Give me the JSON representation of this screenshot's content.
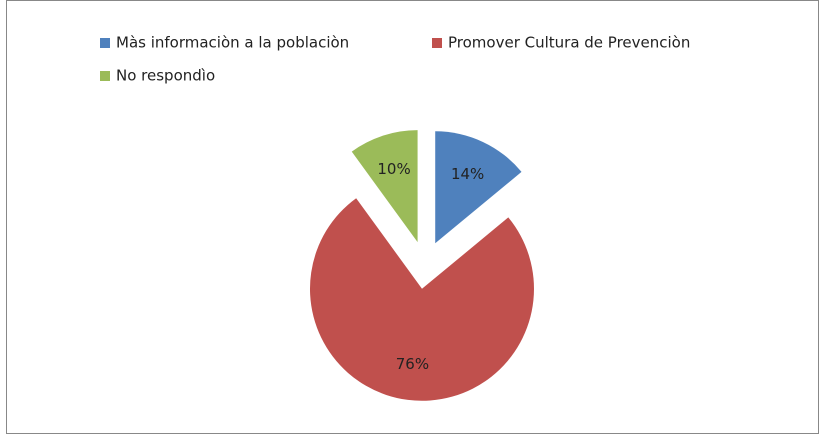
{
  "chart_data": {
    "type": "pie",
    "categories": [
      "Màs informaciòn a la poblaciòn",
      "Promover Cultura de Prevenciòn",
      "No respondìo"
    ],
    "values": [
      14,
      76,
      10
    ],
    "value_labels": [
      "14%",
      "76%",
      "10%"
    ],
    "colors": [
      "#4f81bd",
      "#c0504d",
      "#9bbb59"
    ],
    "exploded": true
  }
}
